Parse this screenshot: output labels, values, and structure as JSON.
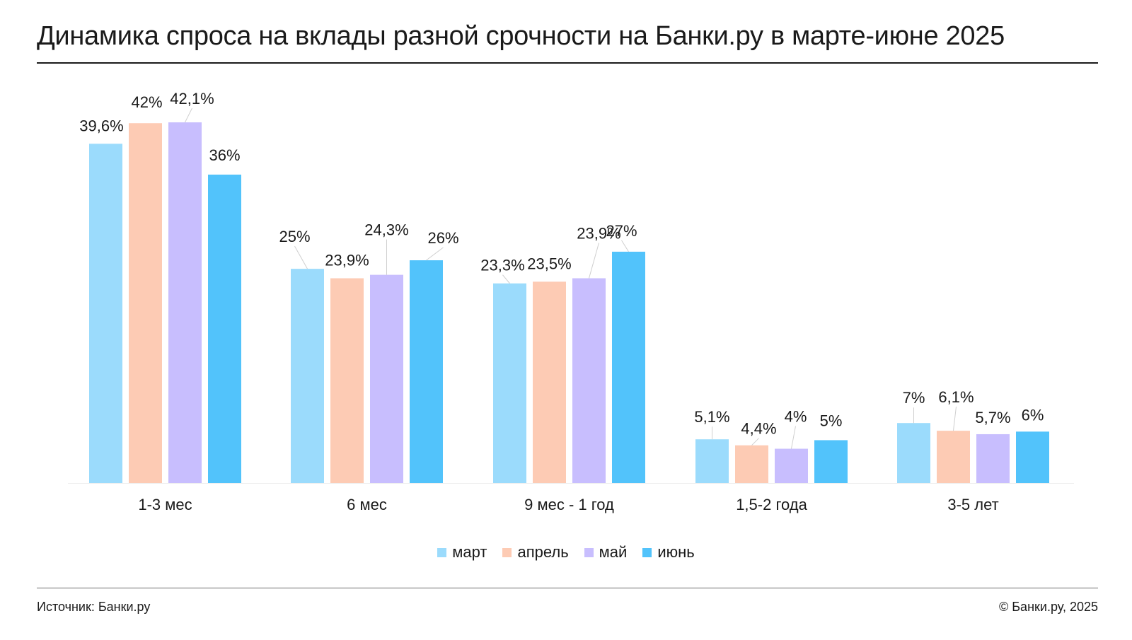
{
  "title": "Динамика спроса на вклады разной срочности на Банки.ру в марте-июне 2025",
  "footer": {
    "source": "Источник: Банки.ру",
    "copyright": "© Банки.ру, 2025"
  },
  "legend": [
    {
      "label": "март",
      "color": "#9BDBFC"
    },
    {
      "label": "апрель",
      "color": "#FDCBB4"
    },
    {
      "label": "май",
      "color": "#C8BEFE"
    },
    {
      "label": "июнь",
      "color": "#52C3FB"
    }
  ],
  "chart_data": {
    "type": "bar",
    "title": "Динамика спроса на вклады разной срочности на Банки.ру в марте-июне 2025",
    "xlabel": "",
    "ylabel": "",
    "ylim": [
      0,
      42.1
    ],
    "grid": false,
    "legend_position": "bottom",
    "categories": [
      "1-3 мес",
      "6 мес",
      "9 мес - 1 год",
      "1,5-2 года",
      "3-5 лет"
    ],
    "series": [
      {
        "name": "март",
        "color": "#9BDBFC",
        "values": [
          39.6,
          25,
          23.3,
          5.1,
          7
        ],
        "labels": [
          "39,6%",
          "25%",
          "23,3%",
          "5,1%",
          "7%"
        ]
      },
      {
        "name": "апрель",
        "color": "#FDCBB4",
        "values": [
          42,
          23.9,
          23.5,
          4.4,
          6.1
        ],
        "labels": [
          "42%",
          "23,9%",
          "23,5%",
          "4,4%",
          "6,1%"
        ]
      },
      {
        "name": "май",
        "color": "#C8BEFE",
        "values": [
          42.1,
          24.3,
          23.9,
          4,
          5.7
        ],
        "labels": [
          "42,1%",
          "24,3%",
          "23,9%",
          "4%",
          "5,7%"
        ]
      },
      {
        "name": "июнь",
        "color": "#52C3FB",
        "values": [
          36,
          26,
          27,
          5,
          6
        ],
        "labels": [
          "36%",
          "26%",
          "27%",
          "5%",
          "6%"
        ]
      }
    ]
  }
}
